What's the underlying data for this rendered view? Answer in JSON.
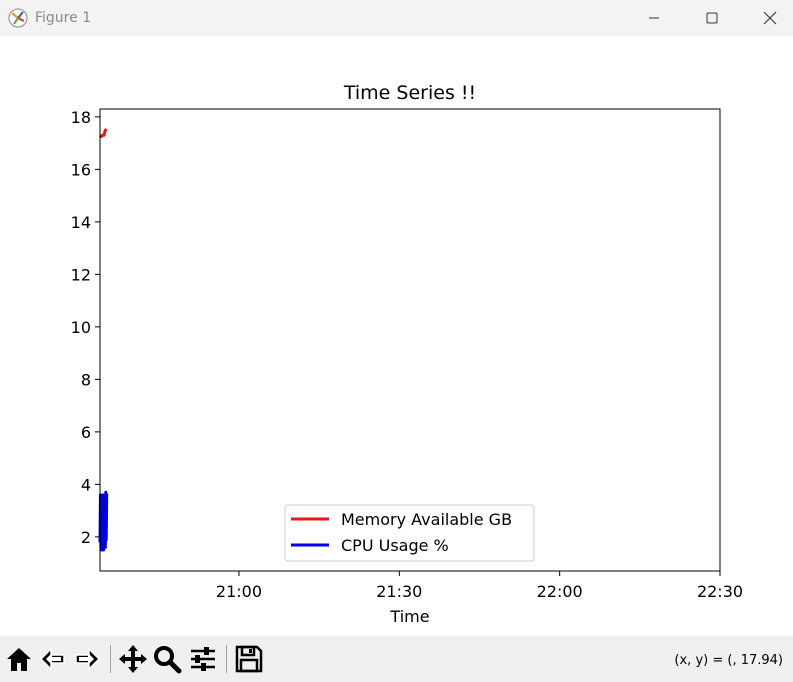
{
  "window": {
    "title": "Figure 1",
    "icons": [
      "matplotlib-icon",
      "minimize-icon",
      "maximize-icon",
      "close-icon"
    ]
  },
  "toolbar": {
    "icons": [
      "home-icon",
      "back-icon",
      "forward-icon",
      "pan-icon",
      "zoom-icon",
      "configure-subplots-icon",
      "save-icon"
    ],
    "coords": "(x, y) = (, 17.94)"
  },
  "chart_data": {
    "type": "line",
    "title": "Time Series !!",
    "xlabel": "Time",
    "ylabel": "",
    "x_axis": "time",
    "xlim": [
      "20:34",
      "22:30"
    ],
    "xticks": [
      "21:00",
      "21:30",
      "22:00",
      "22:30"
    ],
    "ylim": [
      0.7,
      18.3
    ],
    "yticks": [
      2,
      4,
      6,
      8,
      10,
      12,
      14,
      16,
      18
    ],
    "grid": false,
    "legend": "lower center",
    "series": [
      {
        "name": "Memory Available GB",
        "color": "#e41a1c",
        "x": [
          "20:34:00",
          "20:34:15",
          "20:34:30",
          "20:34:45",
          "20:35:00",
          "20:35:15"
        ],
        "y": [
          17.3,
          17.25,
          17.3,
          17.3,
          17.5,
          17.45
        ]
      },
      {
        "name": "CPU Usage %",
        "color": "#0000e0",
        "x": [
          "20:34:00",
          "20:34:05",
          "20:34:10",
          "20:34:15",
          "20:34:20",
          "20:34:25",
          "20:34:30",
          "20:34:35",
          "20:34:40",
          "20:34:45",
          "20:34:50",
          "20:34:55",
          "20:35:00",
          "20:35:05",
          "20:35:10",
          "20:35:15"
        ],
        "y": [
          1.8,
          3.6,
          1.6,
          3.5,
          1.5,
          3.4,
          1.6,
          3.6,
          1.5,
          3.5,
          1.7,
          3.6,
          1.6,
          3.7,
          1.9,
          3.65
        ]
      }
    ]
  }
}
